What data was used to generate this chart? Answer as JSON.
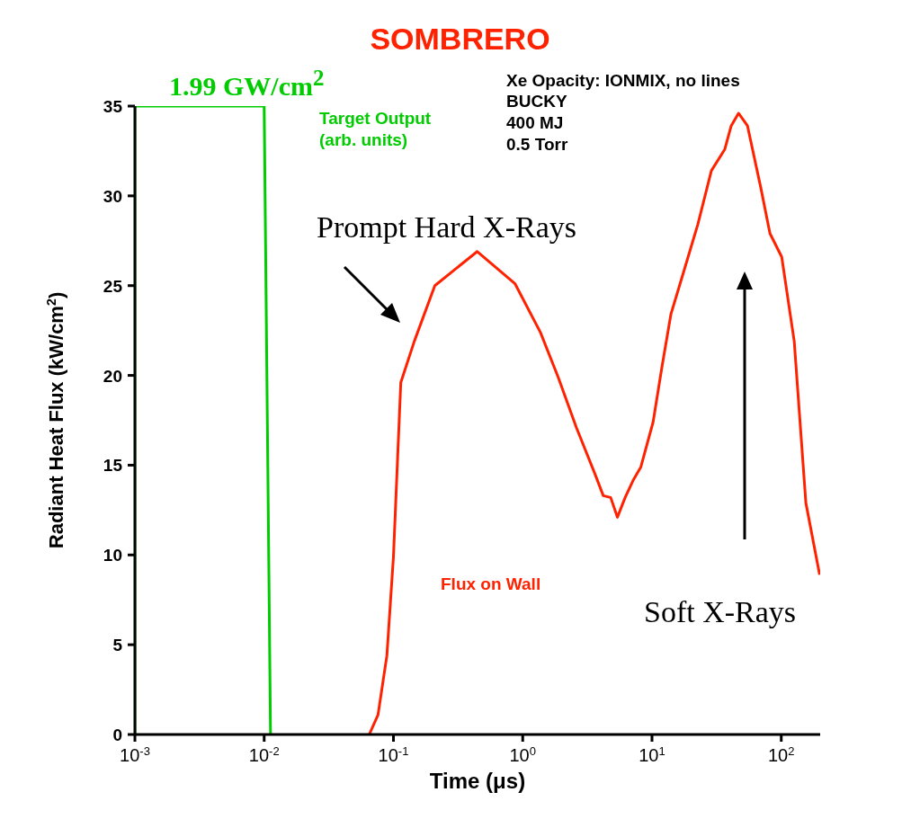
{
  "chart_data": {
    "type": "line",
    "title": "SOMBRERO",
    "xlabel": "Time (μs)",
    "ylabel": "Radiant Heat Flux (kW/cm$^{2}$)",
    "log": "x",
    "grid": false,
    "marker": "none",
    "line_style": "solid",
    "xlim": [
      0.001,
      200
    ],
    "xticks": [
      {
        "value": 0.001,
        "label": "10$^{-3}$"
      },
      {
        "value": 0.01,
        "label": "10$^{-2}$"
      },
      {
        "value": 0.1,
        "label": "10$^{-1}$"
      },
      {
        "value": 1,
        "label": "10$^{0}$"
      },
      {
        "value": 10,
        "label": "10$^{1}$"
      },
      {
        "value": 100,
        "label": "10$^{2}$"
      }
    ],
    "ylim": [
      0,
      35
    ],
    "yticks": [
      0,
      5,
      10,
      15,
      20,
      25,
      30,
      35
    ],
    "series": [
      {
        "name": "Target Output (arb. units)",
        "color": "#00cc00",
        "x": [
          0.001,
          0.001,
          0.01,
          0.0112
        ],
        "values": [
          0,
          35,
          35,
          0
        ]
      },
      {
        "name": "Flux on Wall",
        "color": "#ff2200",
        "x": [
          0.065,
          0.076,
          0.089,
          0.1,
          0.114,
          0.145,
          0.209,
          0.445,
          0.873,
          1.37,
          1.88,
          2.6,
          3.58,
          4.2,
          4.79,
          5.4,
          6.2,
          7.2,
          8.2,
          10.2,
          11.9,
          14,
          17.8,
          22.6,
          28.8,
          36.6,
          41,
          46.7,
          54.8,
          69.7,
          81.8,
          100.8,
          126,
          155,
          198
        ],
        "values": [
          0,
          1.1,
          4.4,
          9.9,
          19.6,
          21.9,
          25,
          26.9,
          25.1,
          22.4,
          19.9,
          17.1,
          14.6,
          13.3,
          13.2,
          12.1,
          13.2,
          14.2,
          14.9,
          17.4,
          20.4,
          23.4,
          25.9,
          28.4,
          31.4,
          32.6,
          33.9,
          34.6,
          33.9,
          30.4,
          27.9,
          26.6,
          21.9,
          12.9,
          8.9
        ]
      }
    ],
    "annotations": [
      "1.99 GW/cm$^{2}$",
      "Xe Opacity: IONMIX, no lines",
      "BUCKY",
      "400 MJ",
      "0.5 Torr",
      "Prompt Hard X-Rays",
      "Soft X-Rays"
    ]
  }
}
